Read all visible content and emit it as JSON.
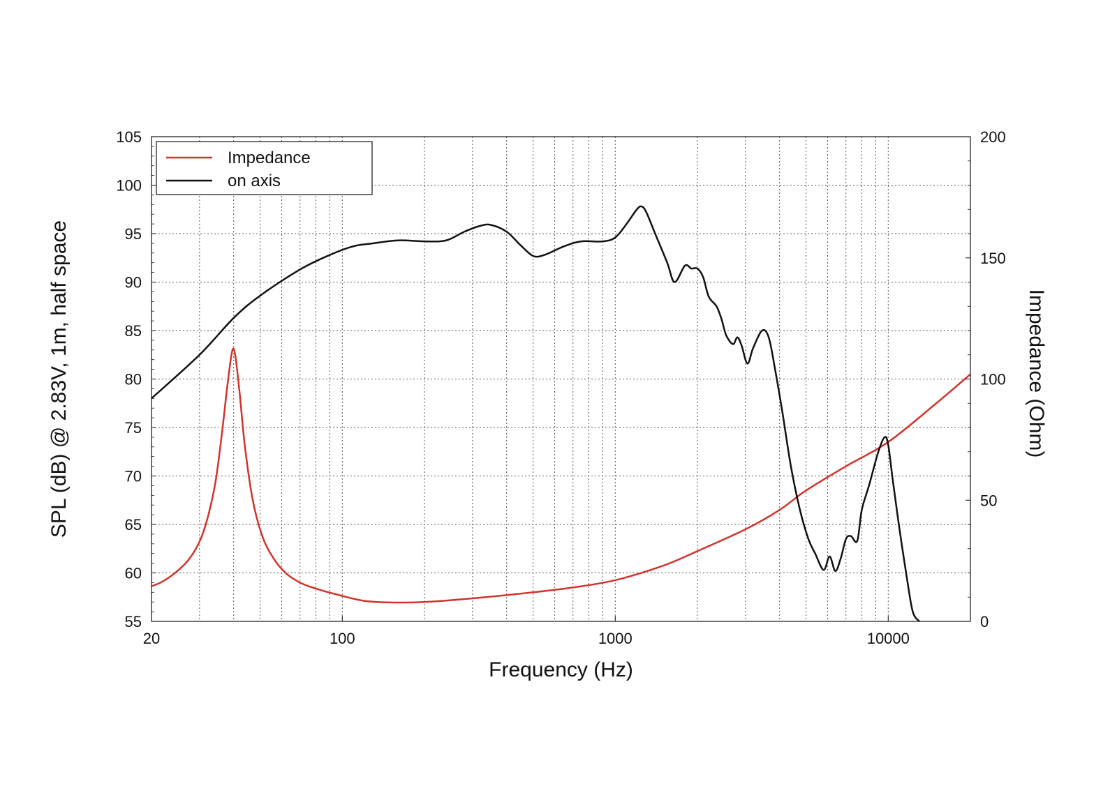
{
  "chart_data": {
    "type": "line",
    "title": "",
    "xlabel": "Frequency (Hz)",
    "ylabel": "SPL (dB) @ 2.83V, 1m, half space",
    "y2label": "Impedance (Ohm)",
    "x_scale": "log",
    "xlim": [
      20,
      20000
    ],
    "ylim": [
      55,
      105
    ],
    "y2lim": [
      0,
      200
    ],
    "x_ticks": [
      20,
      100,
      1000,
      10000
    ],
    "x_tick_labels": [
      "20",
      "100",
      "1000",
      "10000"
    ],
    "y_ticks": [
      55,
      60,
      65,
      70,
      75,
      80,
      85,
      90,
      95,
      100,
      105
    ],
    "y_tick_labels": [
      "55",
      "60",
      "65",
      "70",
      "75",
      "80",
      "85",
      "90",
      "95",
      "100",
      "105"
    ],
    "y2_ticks": [
      0,
      50,
      100,
      150,
      200
    ],
    "y2_tick_labels": [
      "0",
      "50",
      "100",
      "150",
      "200"
    ],
    "grid": true,
    "legend_position": "top-left",
    "series": [
      {
        "name": "Impedance",
        "axis": "right",
        "color": "#d0342c",
        "x": [
          20,
          22,
          25,
          28,
          31,
          34,
          36,
          38,
          39.5,
          40.5,
          42,
          44,
          47,
          51,
          56,
          62,
          70,
          80,
          100,
          120,
          150,
          200,
          300,
          500,
          700,
          1000,
          1500,
          2000,
          3000,
          4000,
          5000,
          7000,
          10000,
          15000,
          20000
        ],
        "y": [
          14.5,
          16.5,
          21,
          27,
          37,
          55,
          75,
          98,
          111.5,
          110,
          95,
          72,
          50,
          35,
          26,
          20,
          16,
          13.5,
          10.5,
          8.5,
          7.8,
          8,
          9.5,
          12,
          14,
          17,
          23,
          29,
          38,
          46,
          54,
          64,
          74,
          90,
          102
        ]
      },
      {
        "name": "on axis",
        "axis": "left",
        "color": "#111111",
        "x": [
          20,
          30,
          40,
          50,
          70,
          90,
          110,
          130,
          160,
          200,
          240,
          280,
          320,
          350,
          400,
          450,
          500,
          550,
          650,
          750,
          900,
          1000,
          1100,
          1200,
          1250,
          1300,
          1400,
          1550,
          1650,
          1800,
          1900,
          2000,
          2100,
          2200,
          2350,
          2450,
          2550,
          2700,
          2800,
          2900,
          3050,
          3200,
          3450,
          3650,
          3850,
          4100,
          4400,
          4750,
          5100,
          5400,
          5800,
          6100,
          6400,
          6700,
          7000,
          7300,
          7700,
          8000,
          8500,
          9200,
          9700,
          10000,
          10400,
          11000,
          11700,
          12300,
          13000
        ],
        "y": [
          78,
          82.5,
          86.3,
          88.6,
          91.3,
          92.8,
          93.7,
          94.0,
          94.3,
          94.2,
          94.3,
          95.2,
          95.8,
          95.9,
          95.2,
          93.8,
          92.7,
          92.8,
          93.7,
          94.2,
          94.2,
          94.6,
          96,
          97.5,
          97.8,
          97.2,
          95,
          92,
          90,
          91.7,
          91.4,
          91.4,
          90.5,
          88.5,
          87.5,
          86.2,
          84.5,
          83.6,
          84.3,
          83.5,
          81.6,
          83.2,
          85,
          84.3,
          81,
          76.5,
          71,
          66.5,
          63.5,
          62,
          60.3,
          61.7,
          60.2,
          61.5,
          63.5,
          63.8,
          63.3,
          66.5,
          69,
          72.5,
          74,
          73.2,
          69.5,
          64.5,
          59.5,
          56,
          55
        ]
      }
    ]
  }
}
